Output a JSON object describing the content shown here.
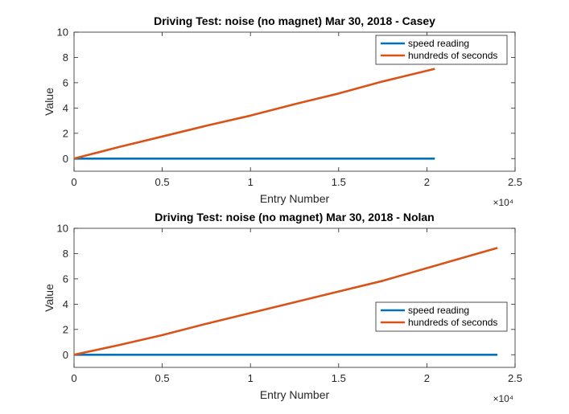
{
  "chart_data": [
    {
      "type": "line",
      "title": "Driving Test: noise (no magnet) Mar 30, 2018 - Casey",
      "xlabel": "Entry Number",
      "ylabel": "Value",
      "xlim": [
        0,
        25000
      ],
      "ylim": [
        -1,
        10
      ],
      "xticks": [
        0,
        5000,
        10000,
        15000,
        20000,
        25000
      ],
      "xtick_labels": [
        "0",
        "0.5",
        "1",
        "1.5",
        "2",
        "2.5"
      ],
      "x_exponent_label": "×10⁴",
      "yticks": [
        0,
        2,
        4,
        6,
        8,
        10
      ],
      "ytick_labels": [
        "0",
        "2",
        "4",
        "6",
        "8",
        "10"
      ],
      "grid": false,
      "legend_position": "top-right",
      "series": [
        {
          "name": "speed reading",
          "color": "#0072BD",
          "x": [
            0,
            20450
          ],
          "y": [
            0,
            0
          ]
        },
        {
          "name": "hundreds of seconds",
          "color": "#D95319",
          "x": [
            0,
            2500,
            5000,
            7500,
            10000,
            12500,
            15000,
            17500,
            20450
          ],
          "y": [
            0,
            0.9,
            1.75,
            2.6,
            3.4,
            4.3,
            5.15,
            6.1,
            7.1
          ]
        }
      ]
    },
    {
      "type": "line",
      "title": "Driving Test: noise (no magnet) Mar 30, 2018 - Nolan",
      "xlabel": "Entry Number",
      "ylabel": "Value",
      "xlim": [
        0,
        25000
      ],
      "ylim": [
        -1,
        10
      ],
      "xticks": [
        0,
        5000,
        10000,
        15000,
        20000,
        25000
      ],
      "xtick_labels": [
        "0",
        "0.5",
        "1",
        "1.5",
        "2",
        "2.5"
      ],
      "x_exponent_label": "×10⁴",
      "yticks": [
        0,
        2,
        4,
        6,
        8,
        10
      ],
      "ytick_labels": [
        "0",
        "2",
        "4",
        "6",
        "8",
        "10"
      ],
      "grid": false,
      "legend_position": "middle-right",
      "series": [
        {
          "name": "speed reading",
          "color": "#0072BD",
          "x": [
            0,
            24000
          ],
          "y": [
            0,
            0
          ]
        },
        {
          "name": "hundreds of seconds",
          "color": "#D95319",
          "x": [
            0,
            2500,
            5000,
            7500,
            10000,
            12500,
            15000,
            17500,
            20000,
            22500,
            24000
          ],
          "y": [
            0,
            0.75,
            1.55,
            2.45,
            3.3,
            4.15,
            5.0,
            5.85,
            6.85,
            7.85,
            8.45
          ]
        }
      ]
    }
  ]
}
